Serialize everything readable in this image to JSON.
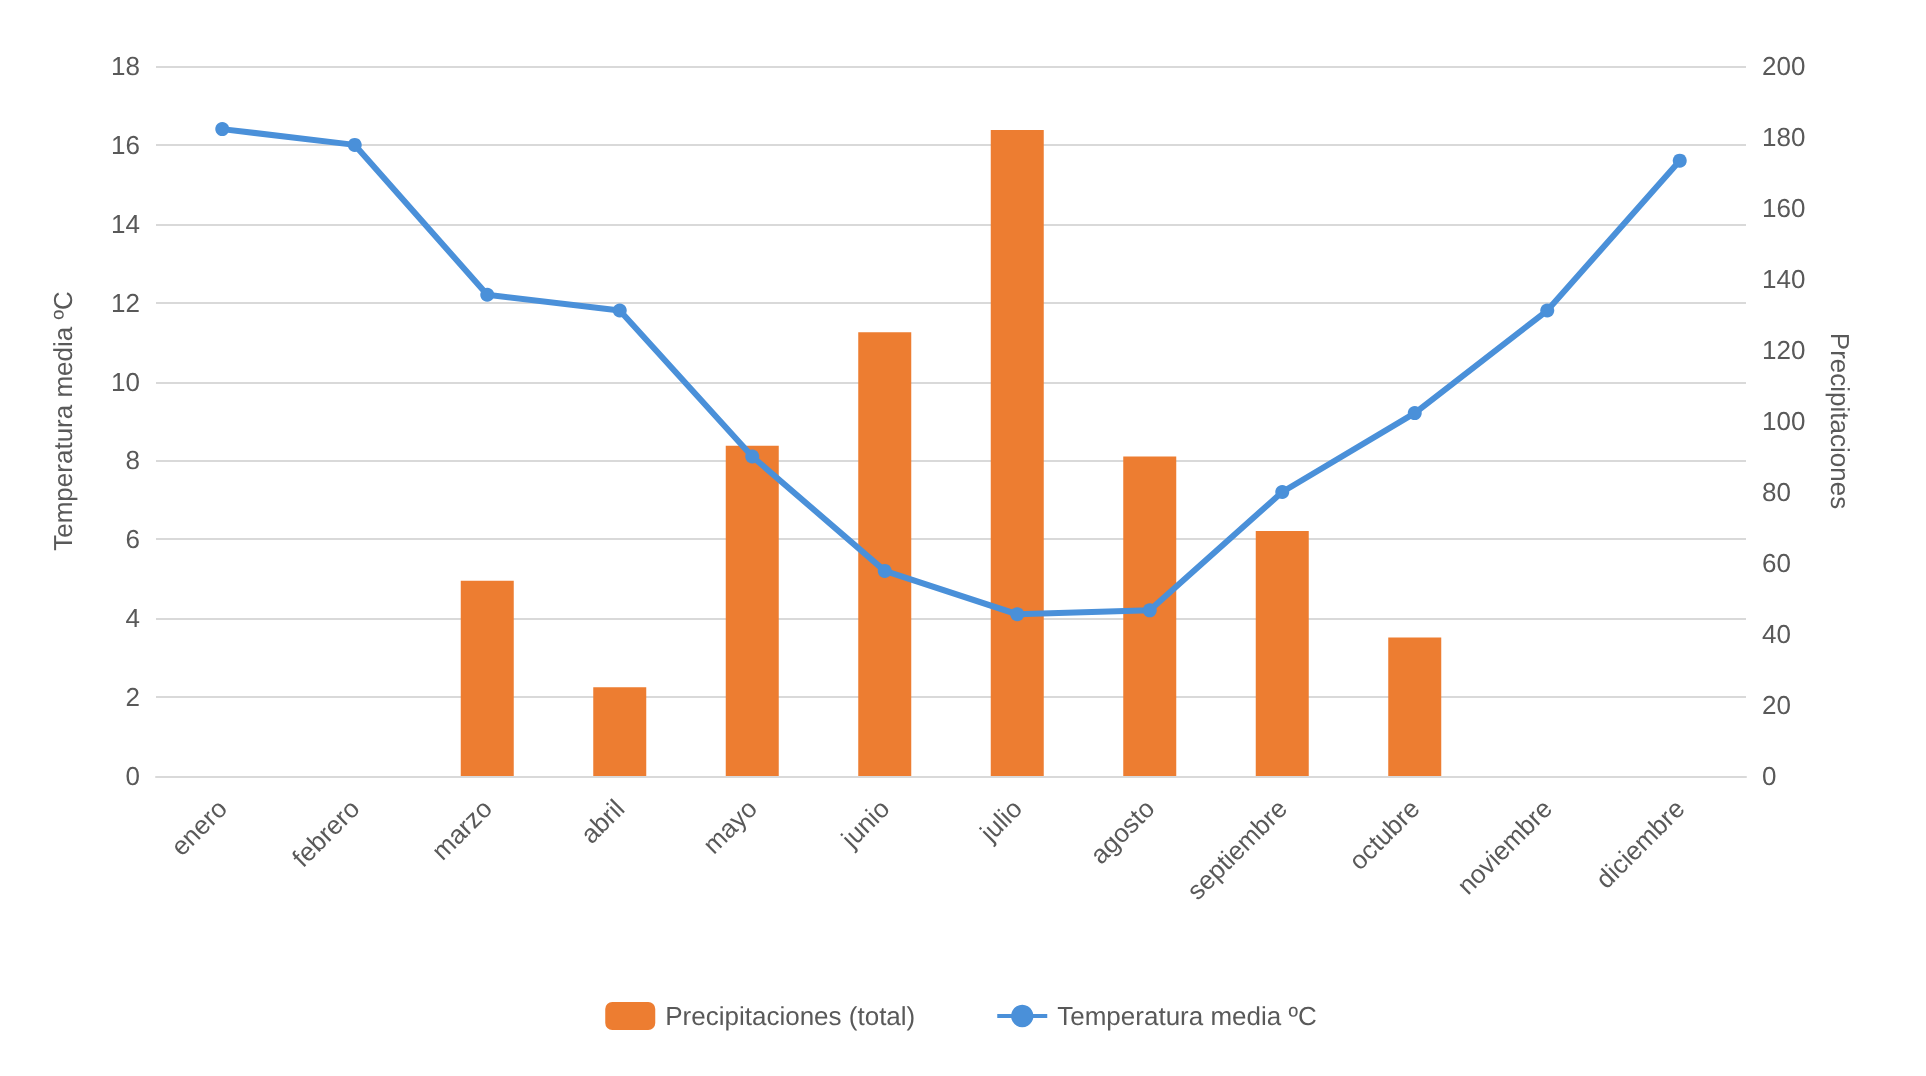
{
  "chart_data": {
    "type": "bar",
    "categories": [
      "enero",
      "febrero",
      "marzo",
      "abril",
      "mayo",
      "junio",
      "julio",
      "agosto",
      "septiembre",
      "octubre",
      "noviembre",
      "diciembre"
    ],
    "series": [
      {
        "name": "Precipitaciones (total)",
        "axis": "y2",
        "color": "#ed7d31",
        "values": [
          0,
          0,
          55,
          25,
          93,
          125,
          182,
          90,
          69,
          39,
          0,
          0
        ]
      },
      {
        "name": "Temperatura media ºC",
        "type": "line",
        "color": "#4a90d9",
        "marker": "circle",
        "values": [
          16.4,
          16.0,
          12.2,
          11.8,
          8.1,
          5.2,
          4.1,
          4.2,
          7.2,
          9.2,
          11.8,
          15.6
        ]
      }
    ],
    "ylabel": "Temperatura media ºC",
    "y2label": "Precipitaciones",
    "ylim": [
      0,
      18
    ],
    "yticks": [
      0,
      2,
      4,
      6,
      8,
      10,
      12,
      14,
      16,
      18
    ],
    "y2lim": [
      0,
      200
    ],
    "y2ticks": [
      0,
      20,
      40,
      60,
      80,
      100,
      120,
      140,
      160,
      180,
      200
    ],
    "grid": "y",
    "legend": "bottom"
  }
}
